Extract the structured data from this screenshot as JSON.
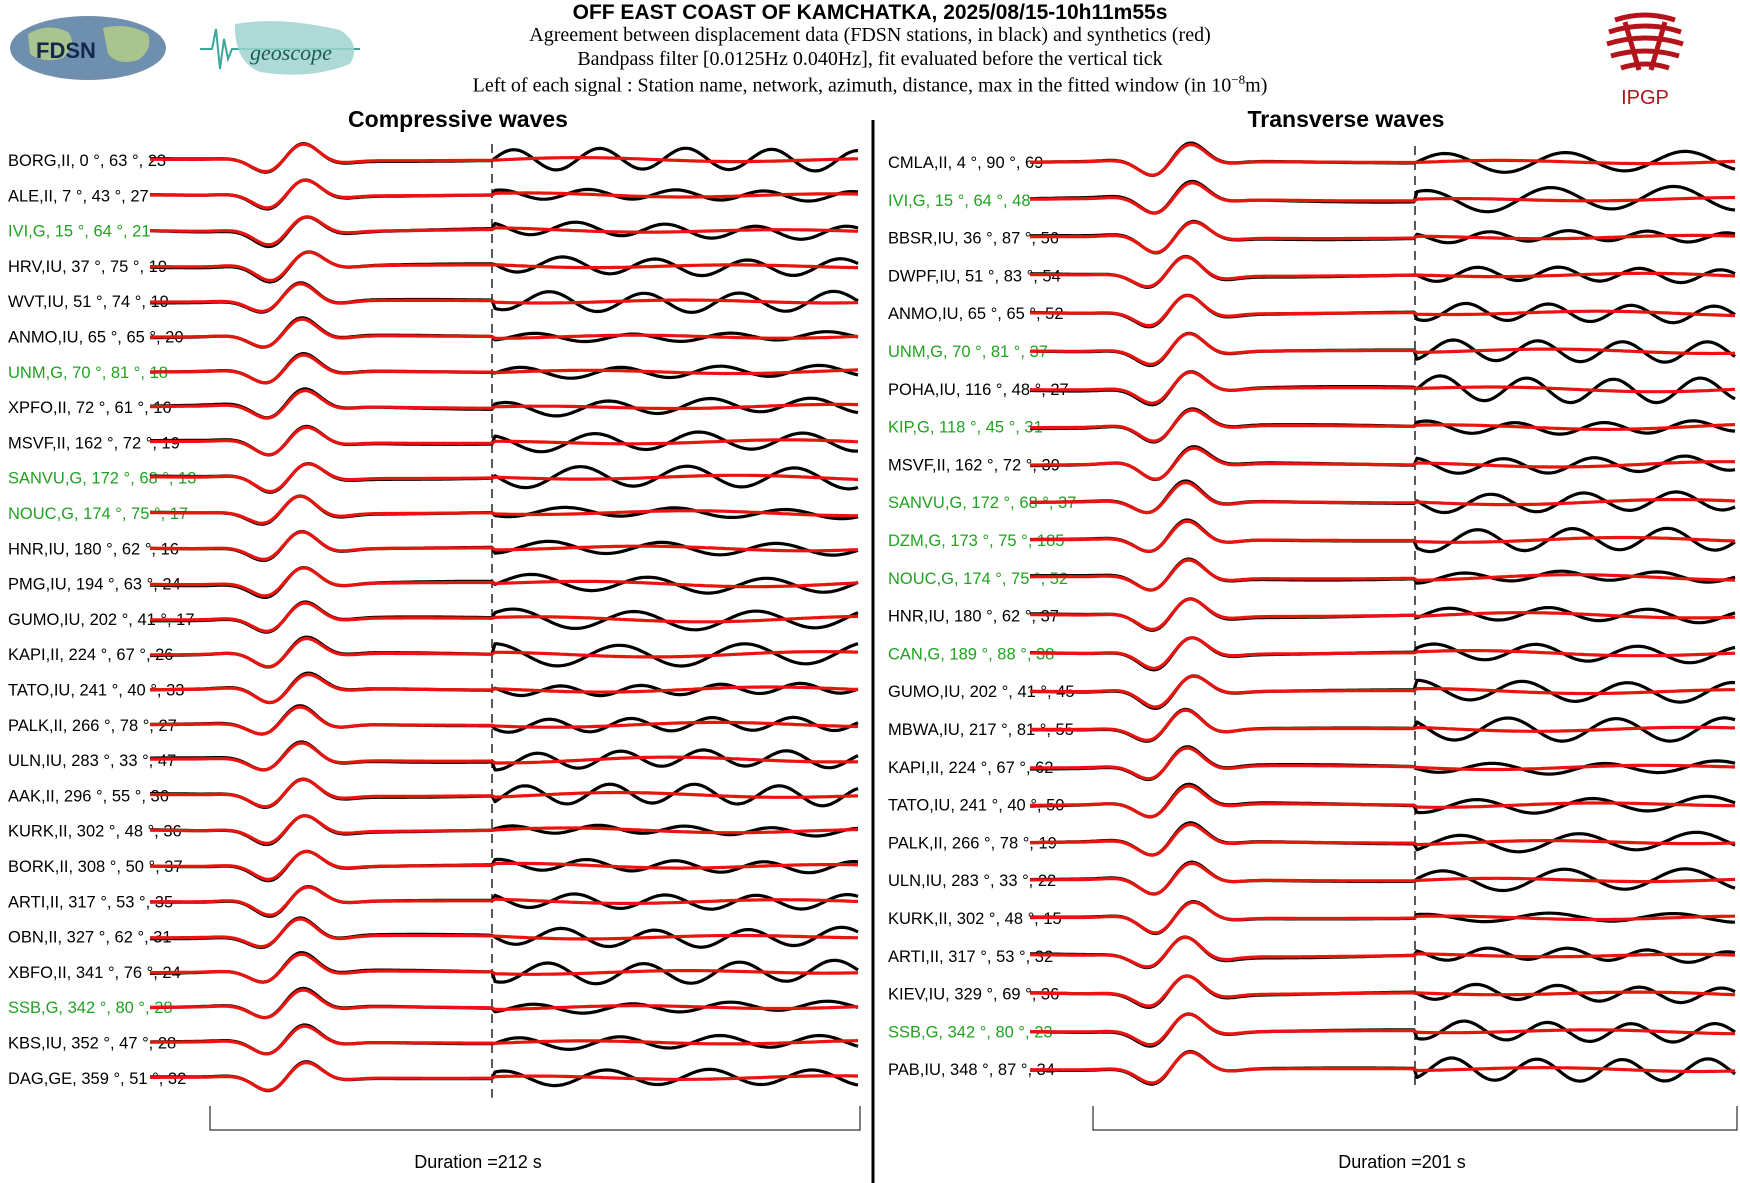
{
  "header": {
    "title": "OFF EAST COAST OF KAMCHATKA, 2025/08/15-10h11m55s",
    "line1": "Agreement between displacement data (FDSN stations, in black) and synthetics (red)",
    "line2": "Bandpass filter [0.0125Hz 0.040Hz], fit evaluated before the vertical tick",
    "line3_prefix": "Left of each signal : Station name, network, azimuth, distance, max in the fitted window (in 10",
    "line3_exp": "−8",
    "line3_suffix": "m)"
  },
  "logos": {
    "fdsn": "FDSN",
    "geoscope": "geoscope",
    "ipgp": "IPGP"
  },
  "colors": {
    "data": "#000000",
    "synthetic": "#e8140f",
    "geoscope_station": "#1fa31f",
    "normal_station": "#000000"
  },
  "chart_data": [
    {
      "type": "line",
      "title": "Compressive waves",
      "footer": "Duration =212 s",
      "stations": [
        {
          "name": "BORG",
          "net": "II",
          "az": "0",
          "dist": "63",
          "max": "23"
        },
        {
          "name": "ALE",
          "net": "II",
          "az": "7",
          "dist": "43",
          "max": "27"
        },
        {
          "name": "IVI",
          "net": "G",
          "az": "15",
          "dist": "64",
          "max": "21"
        },
        {
          "name": "HRV",
          "net": "IU",
          "az": "37",
          "dist": "75",
          "max": "19"
        },
        {
          "name": "WVT",
          "net": "IU",
          "az": "51",
          "dist": "74",
          "max": "19"
        },
        {
          "name": "ANMO",
          "net": "IU",
          "az": "65",
          "dist": "65",
          "max": "20"
        },
        {
          "name": "UNM",
          "net": "G",
          "az": "70",
          "dist": "81",
          "max": "18"
        },
        {
          "name": "XPFO",
          "net": "II",
          "az": "72",
          "dist": "61",
          "max": "16"
        },
        {
          "name": "MSVF",
          "net": "II",
          "az": "162",
          "dist": "72",
          "max": "19"
        },
        {
          "name": "SANVU",
          "net": "G",
          "az": "172",
          "dist": "68",
          "max": "13"
        },
        {
          "name": "NOUC",
          "net": "G",
          "az": "174",
          "dist": "75",
          "max": "17"
        },
        {
          "name": "HNR",
          "net": "IU",
          "az": "180",
          "dist": "62",
          "max": "16"
        },
        {
          "name": "PMG",
          "net": "IU",
          "az": "194",
          "dist": "63",
          "max": "24"
        },
        {
          "name": "GUMO",
          "net": "IU",
          "az": "202",
          "dist": "41",
          "max": "17"
        },
        {
          "name": "KAPI",
          "net": "II",
          "az": "224",
          "dist": "67",
          "max": "26"
        },
        {
          "name": "TATO",
          "net": "IU",
          "az": "241",
          "dist": "40",
          "max": "33"
        },
        {
          "name": "PALK",
          "net": "II",
          "az": "266",
          "dist": "78",
          "max": "27"
        },
        {
          "name": "ULN",
          "net": "IU",
          "az": "283",
          "dist": "33",
          "max": "47"
        },
        {
          "name": "AAK",
          "net": "II",
          "az": "296",
          "dist": "55",
          "max": "36"
        },
        {
          "name": "KURK",
          "net": "II",
          "az": "302",
          "dist": "48",
          "max": "36"
        },
        {
          "name": "BORK",
          "net": "II",
          "az": "308",
          "dist": "50",
          "max": "37"
        },
        {
          "name": "ARTI",
          "net": "II",
          "az": "317",
          "dist": "53",
          "max": "35"
        },
        {
          "name": "OBN",
          "net": "II",
          "az": "327",
          "dist": "62",
          "max": "31"
        },
        {
          "name": "XBFO",
          "net": "II",
          "az": "341",
          "dist": "76",
          "max": "24"
        },
        {
          "name": "SSB",
          "net": "G",
          "az": "342",
          "dist": "80",
          "max": "28"
        },
        {
          "name": "KBS",
          "net": "IU",
          "az": "352",
          "dist": "47",
          "max": "28"
        },
        {
          "name": "DAG",
          "net": "GE",
          "az": "359",
          "dist": "51",
          "max": "32"
        }
      ]
    },
    {
      "type": "line",
      "title": "Transverse waves",
      "footer": "Duration =201 s",
      "stations": [
        {
          "name": "CMLA",
          "net": "II",
          "az": "4",
          "dist": "90",
          "max": "69"
        },
        {
          "name": "IVI",
          "net": "G",
          "az": "15",
          "dist": "64",
          "max": "48"
        },
        {
          "name": "BBSR",
          "net": "IU",
          "az": "36",
          "dist": "87",
          "max": "56"
        },
        {
          "name": "DWPF",
          "net": "IU",
          "az": "51",
          "dist": "83",
          "max": "54"
        },
        {
          "name": "ANMO",
          "net": "IU",
          "az": "65",
          "dist": "65",
          "max": "52"
        },
        {
          "name": "UNM",
          "net": "G",
          "az": "70",
          "dist": "81",
          "max": "37"
        },
        {
          "name": "POHA",
          "net": "IU",
          "az": "116",
          "dist": "48",
          "max": "27"
        },
        {
          "name": "KIP",
          "net": "G",
          "az": "118",
          "dist": "45",
          "max": "31"
        },
        {
          "name": "MSVF",
          "net": "II",
          "az": "162",
          "dist": "72",
          "max": "39"
        },
        {
          "name": "SANVU",
          "net": "G",
          "az": "172",
          "dist": "68",
          "max": "37"
        },
        {
          "name": "DZM",
          "net": "G",
          "az": "173",
          "dist": "75",
          "max": "185"
        },
        {
          "name": "NOUC",
          "net": "G",
          "az": "174",
          "dist": "75",
          "max": "52"
        },
        {
          "name": "HNR",
          "net": "IU",
          "az": "180",
          "dist": "62",
          "max": "37"
        },
        {
          "name": "CAN",
          "net": "G",
          "az": "189",
          "dist": "88",
          "max": "38"
        },
        {
          "name": "GUMO",
          "net": "IU",
          "az": "202",
          "dist": "41",
          "max": "45"
        },
        {
          "name": "MBWA",
          "net": "IU",
          "az": "217",
          "dist": "81",
          "max": "55"
        },
        {
          "name": "KAPI",
          "net": "II",
          "az": "224",
          "dist": "67",
          "max": "62"
        },
        {
          "name": "TATO",
          "net": "IU",
          "az": "241",
          "dist": "40",
          "max": "50"
        },
        {
          "name": "PALK",
          "net": "II",
          "az": "266",
          "dist": "78",
          "max": "19"
        },
        {
          "name": "ULN",
          "net": "IU",
          "az": "283",
          "dist": "33",
          "max": "22"
        },
        {
          "name": "KURK",
          "net": "II",
          "az": "302",
          "dist": "48",
          "max": "15"
        },
        {
          "name": "ARTI",
          "net": "II",
          "az": "317",
          "dist": "53",
          "max": "32"
        },
        {
          "name": "KIEV",
          "net": "IU",
          "az": "329",
          "dist": "69",
          "max": "36"
        },
        {
          "name": "SSB",
          "net": "G",
          "az": "342",
          "dist": "80",
          "max": "23"
        },
        {
          "name": "PAB",
          "net": "IU",
          "az": "348",
          "dist": "87",
          "max": "34"
        }
      ]
    }
  ]
}
